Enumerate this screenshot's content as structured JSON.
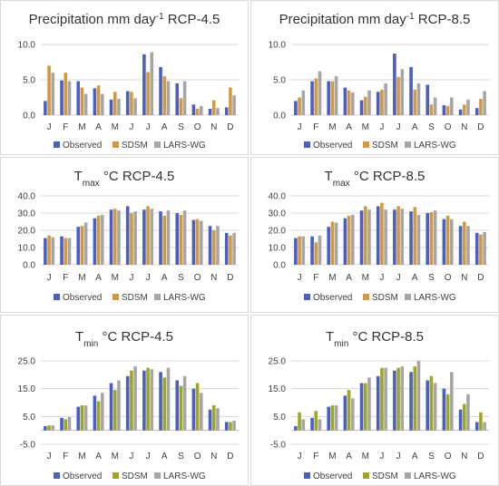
{
  "colors": {
    "observed_45": "#4a5fc1",
    "sdsm_45": "#d29a3f",
    "larswg_45": "#a6a6a6",
    "observed_min": "#4a5fc1",
    "sdsm_min": "#9ea722",
    "larswg_min": "#a6a6a6",
    "gridline": "#d9d9d9"
  },
  "chart_data": [
    {
      "type": "bar",
      "title": {
        "main": "Precipitation mm day",
        "sup": "-1",
        "rest": " RCP-4.5"
      },
      "categories": [
        "J",
        "F",
        "M",
        "A",
        "M",
        "J",
        "J",
        "A",
        "S",
        "O",
        "N",
        "D"
      ],
      "ylim": [
        0,
        10
      ],
      "yticks": [
        "0.0",
        "5.0",
        "10.0"
      ],
      "ytick_values": [
        0,
        5,
        10
      ],
      "legend": [
        "Observed",
        "SDSM",
        "LARS-WG"
      ],
      "series": [
        {
          "name": "Observed",
          "values": [
            2.0,
            4.9,
            4.8,
            3.8,
            2.2,
            3.4,
            8.6,
            6.8,
            4.5,
            1.5,
            0.9,
            1.1
          ]
        },
        {
          "name": "SDSM",
          "values": [
            7.0,
            6.0,
            3.9,
            4.2,
            3.3,
            3.3,
            6.1,
            5.5,
            2.4,
            0.9,
            2.1,
            3.9
          ]
        },
        {
          "name": "LARS-WG",
          "values": [
            6.0,
            4.8,
            3.0,
            3.0,
            2.3,
            2.4,
            8.9,
            4.8,
            4.8,
            1.3,
            1.0,
            2.8
          ]
        }
      ]
    },
    {
      "type": "bar",
      "title": {
        "main": "Precipitation mm day",
        "sup": "-1",
        "rest": " RCP-8.5"
      },
      "categories": [
        "J",
        "F",
        "M",
        "A",
        "M",
        "J",
        "J",
        "A",
        "S",
        "O",
        "N",
        "D"
      ],
      "ylim": [
        0,
        10
      ],
      "yticks": [
        "0.0",
        "5.0",
        "10.0"
      ],
      "ytick_values": [
        0,
        5,
        10
      ],
      "legend": [
        "Observed",
        "SDSM",
        "LARS-WG"
      ],
      "series": [
        {
          "name": "Observed",
          "values": [
            2.0,
            4.8,
            4.8,
            3.9,
            2.1,
            3.3,
            8.7,
            6.8,
            4.3,
            1.4,
            0.8,
            1.0
          ]
        },
        {
          "name": "SDSM",
          "values": [
            2.5,
            5.2,
            4.8,
            3.5,
            2.6,
            3.6,
            5.4,
            3.6,
            1.5,
            1.3,
            1.5,
            2.3
          ]
        },
        {
          "name": "LARS-WG",
          "values": [
            3.5,
            6.2,
            5.5,
            3.2,
            3.5,
            4.5,
            6.5,
            4.5,
            2.5,
            2.5,
            2.2,
            3.4
          ]
        }
      ]
    },
    {
      "type": "bar",
      "title": {
        "main": "T",
        "sub": "max",
        "rest": " °C RCP-4.5"
      },
      "categories": [
        "J",
        "F",
        "M",
        "A",
        "M",
        "J",
        "J",
        "A",
        "S",
        "O",
        "N",
        "D"
      ],
      "ylim": [
        0,
        40
      ],
      "yticks": [
        "0.0",
        "10.0",
        "20.0",
        "30.0",
        "40.0"
      ],
      "ytick_values": [
        0,
        10,
        20,
        30,
        40
      ],
      "legend": [
        "Observed",
        "SDSM",
        "LARS-WG"
      ],
      "series": [
        {
          "name": "Observed",
          "values": [
            15.5,
            16.5,
            22.0,
            27.0,
            32.0,
            34.0,
            32.0,
            31.0,
            30.0,
            26.0,
            22.5,
            18.5
          ]
        },
        {
          "name": "SDSM",
          "values": [
            17.0,
            15.5,
            22.5,
            28.5,
            32.5,
            30.0,
            34.0,
            28.5,
            29.0,
            26.5,
            20.0,
            17.0
          ]
        },
        {
          "name": "LARS-WG",
          "values": [
            16.0,
            15.5,
            24.5,
            29.0,
            31.5,
            31.0,
            32.5,
            31.5,
            31.5,
            25.5,
            22.5,
            18.5
          ]
        }
      ]
    },
    {
      "type": "bar",
      "title": {
        "main": "T",
        "sub": "max",
        "rest": " °C RCP-8.5"
      },
      "categories": [
        "J",
        "F",
        "M",
        "A",
        "M",
        "J",
        "J",
        "A",
        "S",
        "O",
        "N",
        "D"
      ],
      "ylim": [
        0,
        40
      ],
      "yticks": [
        "0.0",
        "10.0",
        "20.0",
        "30.0",
        "40.0"
      ],
      "ytick_values": [
        0,
        10,
        20,
        30,
        40
      ],
      "legend": [
        "Observed",
        "SDSM",
        "LARS-WG"
      ],
      "series": [
        {
          "name": "Observed",
          "values": [
            15.5,
            16.5,
            22.0,
            27.0,
            31.5,
            34.0,
            32.0,
            31.0,
            30.0,
            26.5,
            22.5,
            18.5
          ]
        },
        {
          "name": "SDSM",
          "values": [
            16.5,
            13.0,
            25.0,
            28.5,
            34.0,
            36.0,
            34.0,
            33.5,
            30.5,
            28.5,
            25.0,
            17.5
          ]
        },
        {
          "name": "LARS-WG",
          "values": [
            16.5,
            17.0,
            24.5,
            29.0,
            32.0,
            32.0,
            32.5,
            29.0,
            31.5,
            26.5,
            22.5,
            19.0
          ]
        }
      ]
    },
    {
      "type": "bar",
      "title": {
        "main": "T",
        "sub": "min",
        "rest": " °C RCP-4.5"
      },
      "categories": [
        "J",
        "F",
        "M",
        "A",
        "M",
        "J",
        "J",
        "A",
        "S",
        "O",
        "N",
        "D"
      ],
      "ylim": [
        -5,
        25
      ],
      "yticks": [
        "-5.0",
        "5.0",
        "15.0",
        "25.0"
      ],
      "ytick_values": [
        -5,
        5,
        15,
        25
      ],
      "legend": [
        "Observed",
        "SDSM",
        "LARS-WG"
      ],
      "series": [
        {
          "name": "Observed",
          "values": [
            1.5,
            4.5,
            8.5,
            12.5,
            17.0,
            19.5,
            21.5,
            21.0,
            18.0,
            15.0,
            7.5,
            3.0
          ]
        },
        {
          "name": "SDSM",
          "values": [
            1.8,
            4.0,
            9.0,
            10.5,
            14.5,
            21.5,
            22.5,
            19.0,
            16.0,
            17.0,
            9.0,
            3.0
          ]
        },
        {
          "name": "LARS-WG",
          "values": [
            1.8,
            4.8,
            9.0,
            13.5,
            18.0,
            23.0,
            22.0,
            22.5,
            19.5,
            13.5,
            8.0,
            3.5
          ]
        }
      ]
    },
    {
      "type": "bar",
      "title": {
        "main": "T",
        "sub": "min",
        "rest": " °C RCP-8.5"
      },
      "categories": [
        "J",
        "F",
        "M",
        "A",
        "M",
        "J",
        "J",
        "A",
        "S",
        "O",
        "N",
        "D"
      ],
      "ylim": [
        -5,
        25
      ],
      "yticks": [
        "-5.0",
        "5.0",
        "15.0",
        "25.0"
      ],
      "ytick_values": [
        -5,
        5,
        15,
        25
      ],
      "legend": [
        "Observed",
        "SDSM",
        "LARS-WG"
      ],
      "series": [
        {
          "name": "Observed",
          "values": [
            1.5,
            4.5,
            8.5,
            12.5,
            17.0,
            19.5,
            21.5,
            21.0,
            18.0,
            15.0,
            7.5,
            3.0
          ]
        },
        {
          "name": "SDSM",
          "values": [
            6.5,
            7.0,
            9.0,
            14.5,
            17.0,
            22.5,
            22.5,
            23.0,
            19.5,
            13.0,
            9.5,
            6.5
          ]
        },
        {
          "name": "LARS-WG",
          "values": [
            4.0,
            4.0,
            9.0,
            11.5,
            19.0,
            22.5,
            23.0,
            25.0,
            17.0,
            21.0,
            13.0,
            3.0
          ]
        }
      ]
    }
  ]
}
